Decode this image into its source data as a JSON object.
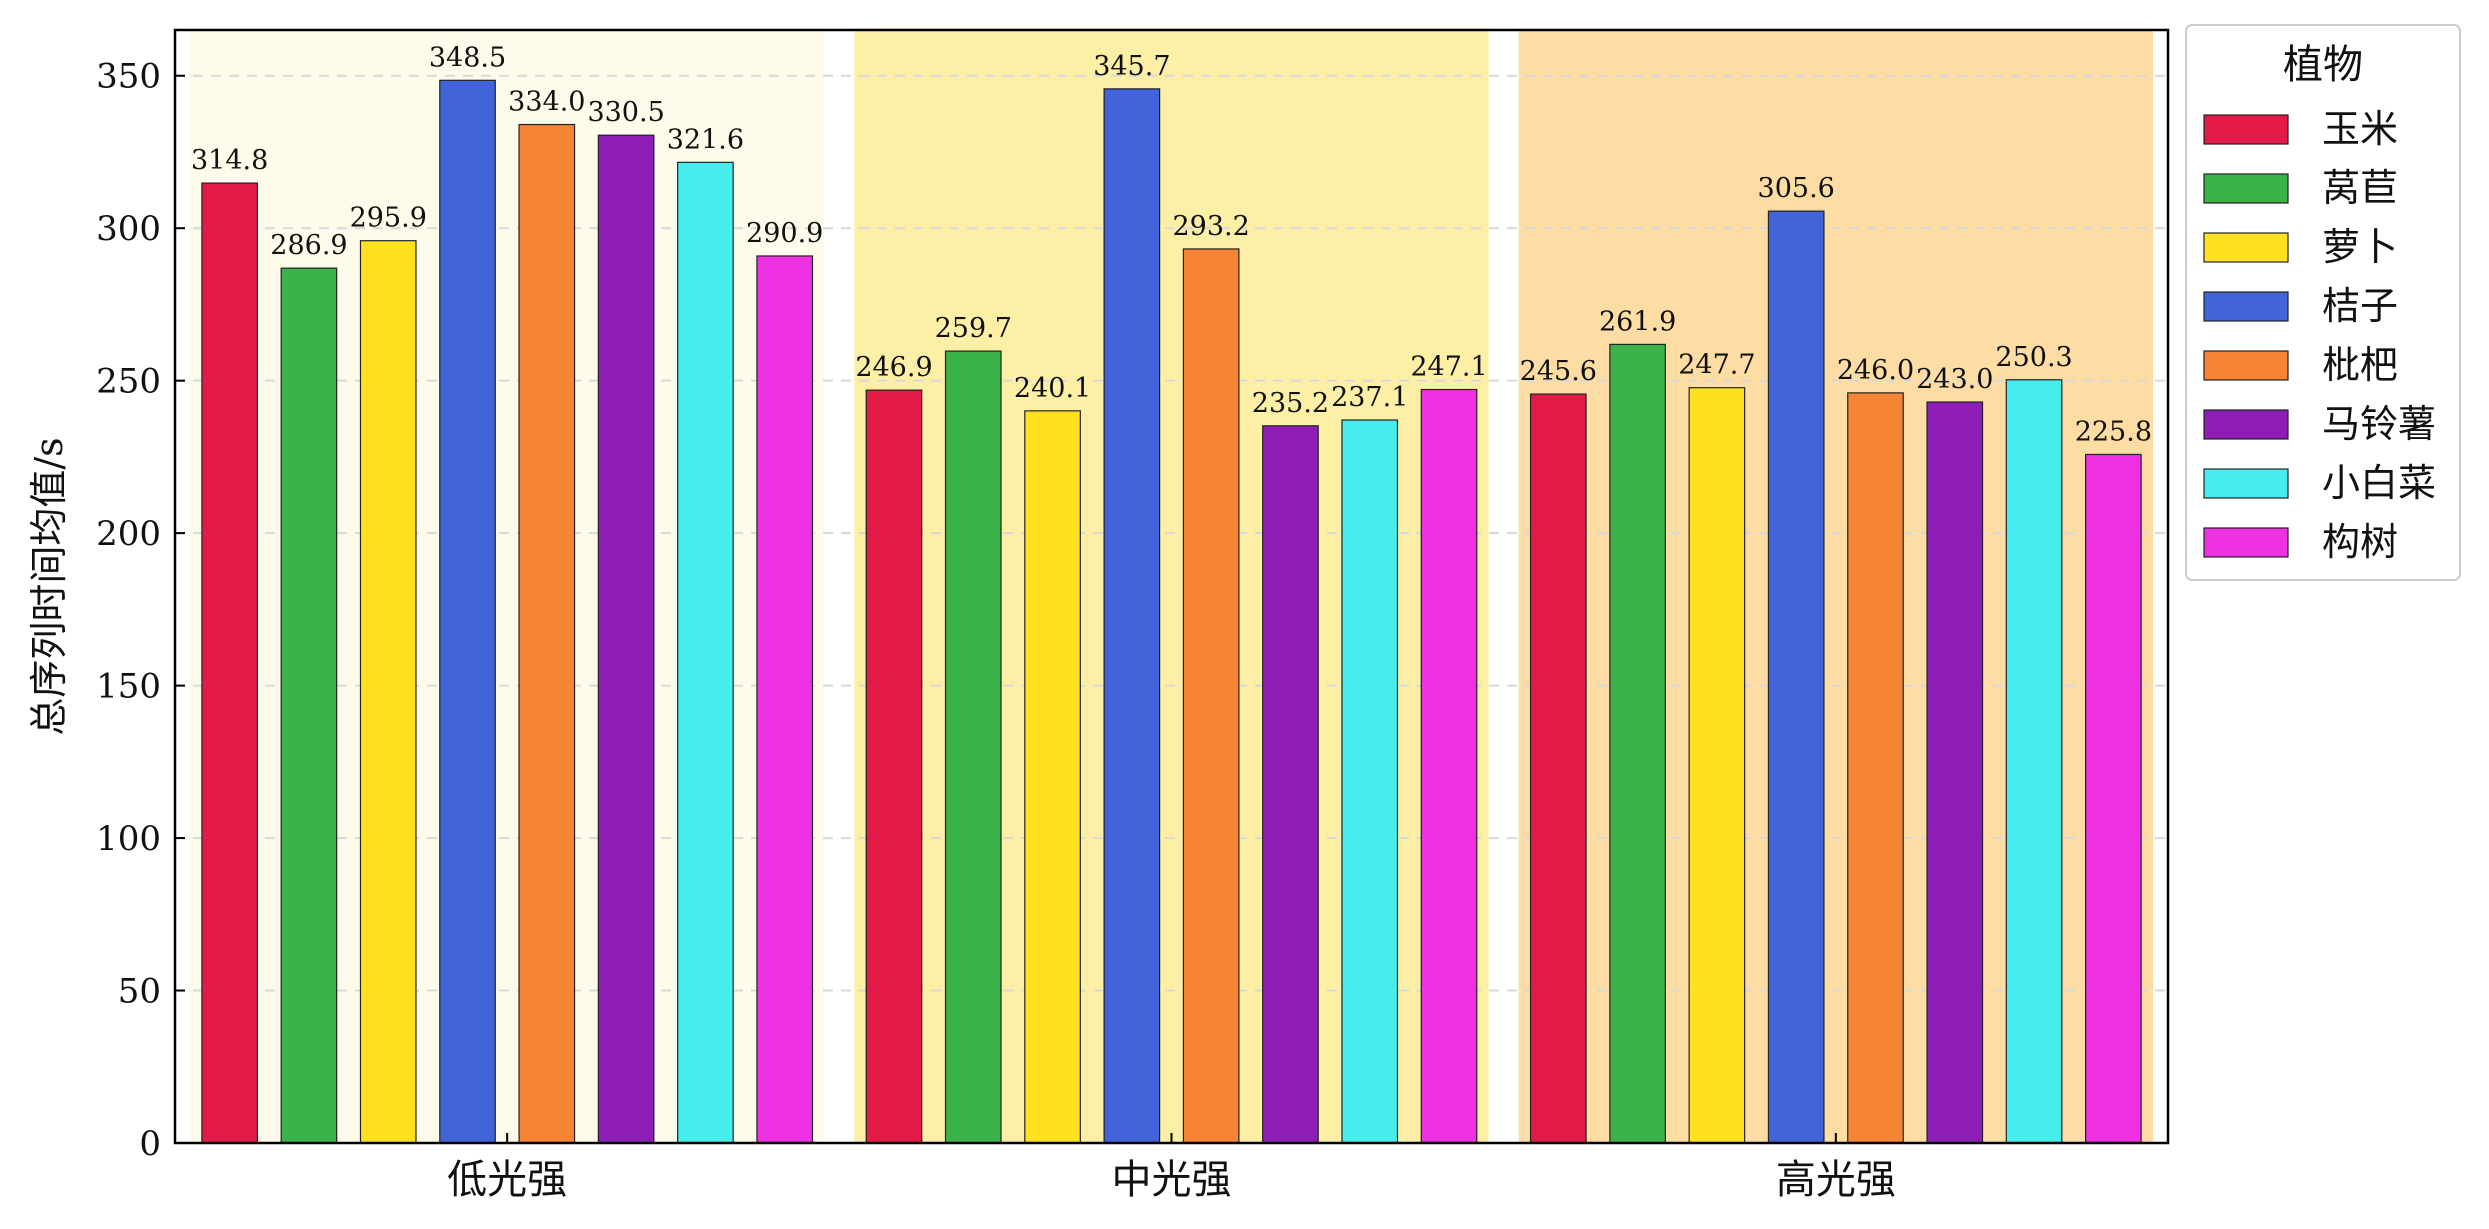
{
  "chart_data": {
    "type": "bar",
    "title": "",
    "xlabel": "",
    "ylabel": "总序列时间均值/s",
    "ylim": [
      0,
      365
    ],
    "yticks": [
      0,
      50,
      100,
      150,
      200,
      250,
      300,
      350
    ],
    "grid": "horizontal dashed",
    "categories": [
      "低光强",
      "中光强",
      "高光强"
    ],
    "category_backgrounds": [
      "#fffbea",
      "#fdf0a6",
      "#fddda4"
    ],
    "legend": {
      "title": "植物",
      "placement": "outside-right-top"
    },
    "series": [
      {
        "name": "玉米",
        "color": "#e31a48",
        "values": [
          314.8,
          246.9,
          245.6
        ]
      },
      {
        "name": "莴苣",
        "color": "#3bb24a",
        "values": [
          286.9,
          259.7,
          261.9
        ]
      },
      {
        "name": "萝卜",
        "color": "#ffe11f",
        "values": [
          295.9,
          240.1,
          247.7
        ]
      },
      {
        "name": "桔子",
        "color": "#4165d9",
        "values": [
          348.5,
          345.7,
          305.6
        ]
      },
      {
        "name": "枇杷",
        "color": "#f58533",
        "values": [
          334.0,
          293.2,
          246.0
        ]
      },
      {
        "name": "马铃薯",
        "color": "#8e1db5",
        "values": [
          330.5,
          235.2,
          243.0
        ]
      },
      {
        "name": "小白菜",
        "color": "#45eeed",
        "values": [
          321.6,
          237.1,
          250.3
        ]
      },
      {
        "name": "构树",
        "color": "#ee31e3",
        "values": [
          290.9,
          247.1,
          225.8
        ]
      }
    ]
  }
}
